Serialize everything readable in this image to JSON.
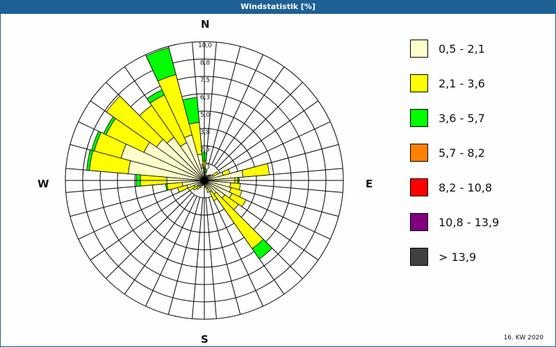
{
  "header": {
    "title": "Windstatistik [%]"
  },
  "compass": {
    "n": "N",
    "e": "E",
    "s": "S",
    "w": "W"
  },
  "footer": {
    "period": "16. KW 2020"
  },
  "legend": {
    "items": [
      {
        "label": "0,5 - 2,1",
        "color": "#ffffcc"
      },
      {
        "label": "2,1 - 3,6",
        "color": "#ffff00"
      },
      {
        "label": "3,6 - 5,7",
        "color": "#00ff00"
      },
      {
        "label": "5,7 - 8,2",
        "color": "#ff8000"
      },
      {
        "label": "8,2 - 10,8",
        "color": "#ff0000"
      },
      {
        "label": "10,8 - 13,9",
        "color": "#800080"
      },
      {
        "label": " > 13,9",
        "color": "#404040"
      }
    ]
  },
  "chart_data": {
    "type": "polar-bar (wind rose)",
    "title": "Windstatistik [%]",
    "radial_unit": "%",
    "radial_ticks": [
      "1,3",
      "2,5",
      "3,8",
      "5,0",
      "6,3",
      "7,5",
      "8,8",
      "10,0"
    ],
    "rmax": 10.0,
    "sector_width_deg": 10,
    "speed_classes": [
      "0,5 - 2,1",
      "2,1 - 3,6",
      "3,6 - 5,7",
      "5,7 - 8,2",
      "8,2 - 10,8",
      "10,8 - 13,9",
      "> 13,9"
    ],
    "class_colors": [
      "#ffffcc",
      "#ffff00",
      "#00ff00",
      "#ff8000",
      "#ff0000",
      "#800080",
      "#404040"
    ],
    "note": "cumulative percentage per speed class, estimated from image",
    "sectors": [
      {
        "dir": 0,
        "cumulative": [
          0.9,
          1.4,
          2.0
        ]
      },
      {
        "dir": 10,
        "cumulative": [
          0.4,
          0.6,
          0.8
        ]
      },
      {
        "dir": 20,
        "cumulative": [
          0.3,
          0.4
        ]
      },
      {
        "dir": 30,
        "cumulative": [
          0.3,
          0.4
        ]
      },
      {
        "dir": 40,
        "cumulative": [
          0.4,
          0.5
        ]
      },
      {
        "dir": 50,
        "cumulative": [
          0.5,
          0.6
        ]
      },
      {
        "dir": 60,
        "cumulative": [
          0.7,
          1.1
        ]
      },
      {
        "dir": 70,
        "cumulative": [
          1.4,
          1.9
        ]
      },
      {
        "dir": 80,
        "cumulative": [
          2.8,
          4.7
        ]
      },
      {
        "dir": 90,
        "cumulative": [
          2.2,
          2.4,
          2.5
        ]
      },
      {
        "dir": 100,
        "cumulative": [
          1.9,
          2.6
        ]
      },
      {
        "dir": 110,
        "cumulative": [
          2.0,
          2.8
        ]
      },
      {
        "dir": 120,
        "cumulative": [
          2.2,
          3.3
        ]
      },
      {
        "dir": 130,
        "cumulative": [
          1.8,
          3.0
        ]
      },
      {
        "dir": 140,
        "cumulative": [
          1.2,
          6.0,
          6.9
        ]
      },
      {
        "dir": 150,
        "cumulative": [
          0.9,
          1.6
        ]
      },
      {
        "dir": 160,
        "cumulative": [
          0.6,
          0.9
        ]
      },
      {
        "dir": 170,
        "cumulative": [
          0.4,
          0.5
        ]
      },
      {
        "dir": 180,
        "cumulative": [
          0.3
        ]
      },
      {
        "dir": 190,
        "cumulative": [
          0.3
        ]
      },
      {
        "dir": 200,
        "cumulative": [
          0.3,
          0.4
        ]
      },
      {
        "dir": 210,
        "cumulative": [
          0.4,
          0.6
        ]
      },
      {
        "dir": 220,
        "cumulative": [
          0.5,
          0.8
        ]
      },
      {
        "dir": 230,
        "cumulative": [
          0.6,
          1.0
        ]
      },
      {
        "dir": 240,
        "cumulative": [
          0.8,
          1.3
        ]
      },
      {
        "dir": 250,
        "cumulative": [
          1.3,
          2.0
        ]
      },
      {
        "dir": 260,
        "cumulative": [
          1.6,
          2.7,
          2.8
        ]
      },
      {
        "dir": 270,
        "cumulative": [
          2.7,
          4.6,
          4.9
        ]
      },
      {
        "dir": 280,
        "cumulative": [
          5.5,
          8.3,
          8.5
        ]
      },
      {
        "dir": 290,
        "cumulative": [
          6.2,
          8.2,
          8.4
        ]
      },
      {
        "dir": 300,
        "cumulative": [
          4.8,
          7.8,
          8.0
        ]
      },
      {
        "dir": 310,
        "cumulative": [
          4.2,
          8.6
        ]
      },
      {
        "dir": 320,
        "cumulative": [
          3.8,
          6.6
        ]
      },
      {
        "dir": 330,
        "cumulative": [
          3.0,
          6.8,
          7.2
        ]
      },
      {
        "dir": 340,
        "cumulative": [
          3.4,
          7.9,
          9.9
        ]
      },
      {
        "dir": 350,
        "cumulative": [
          1.9,
          4.2,
          6.0
        ]
      }
    ]
  }
}
